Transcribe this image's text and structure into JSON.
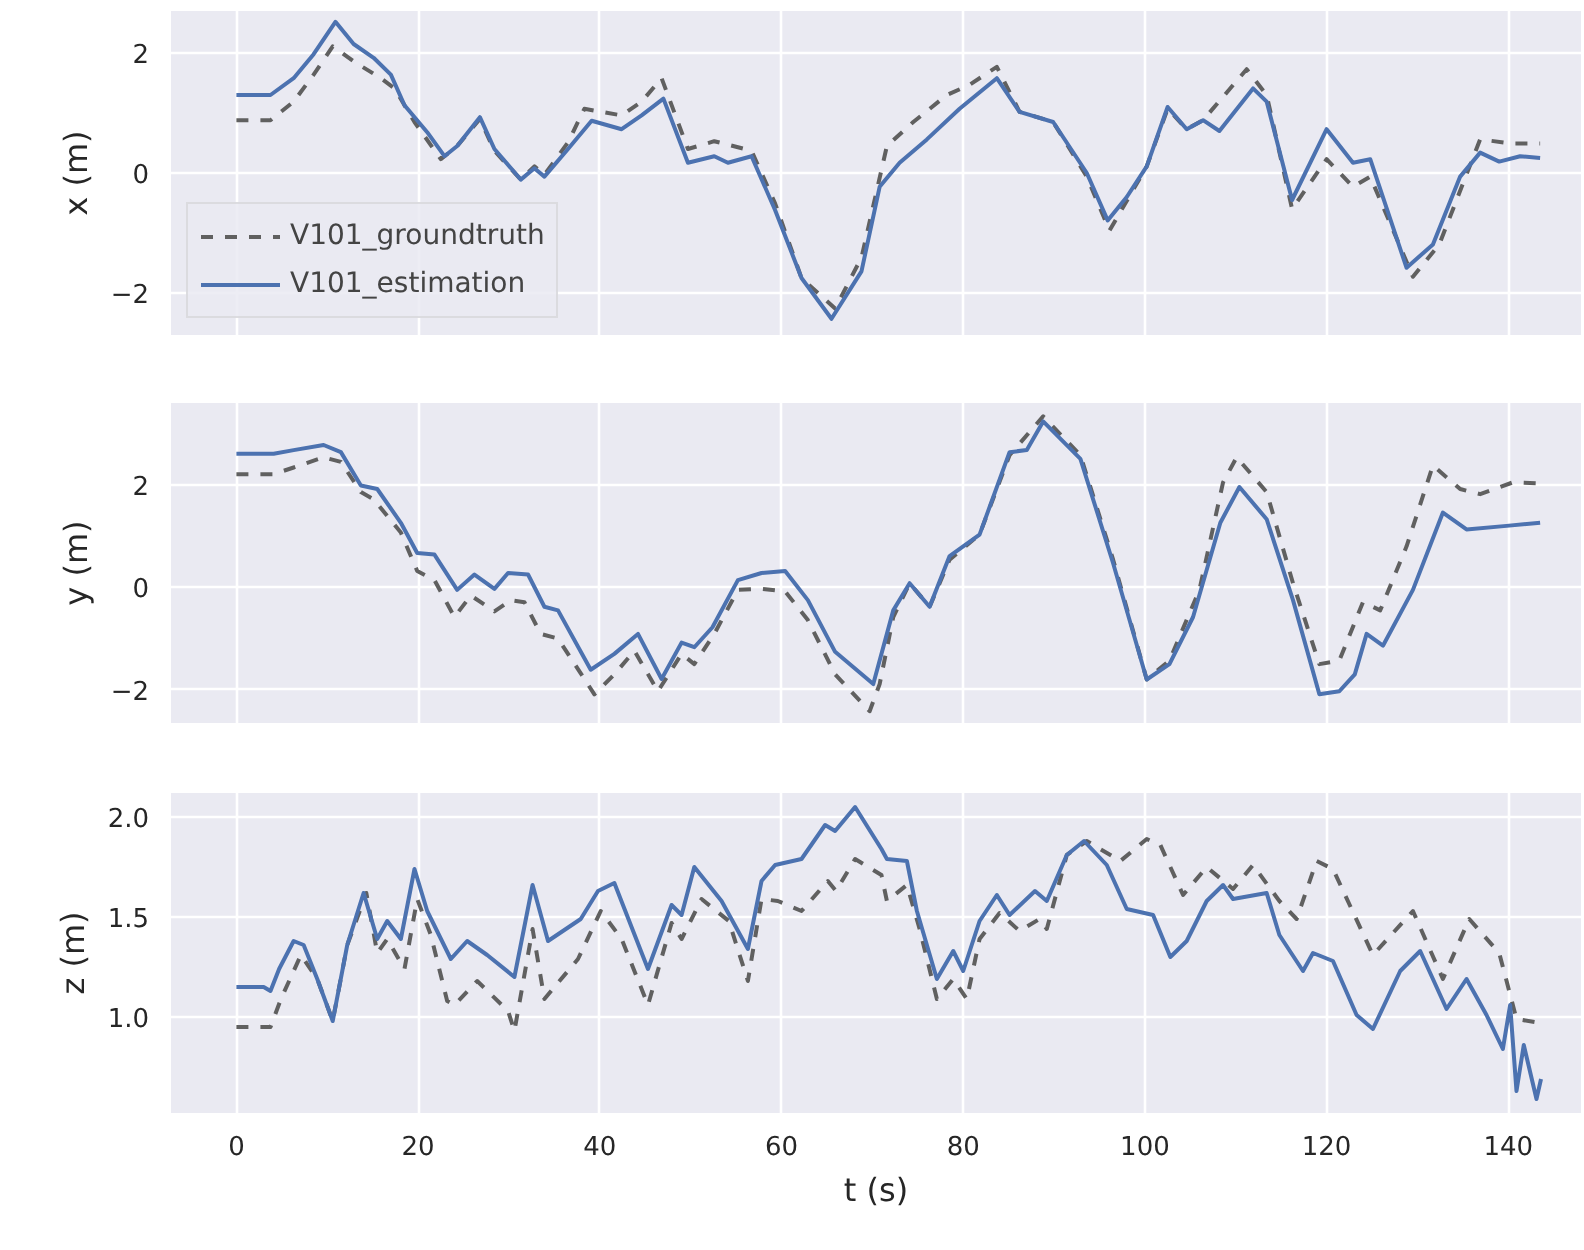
{
  "chart_data": [
    {
      "type": "line",
      "ylabel": "x (m)",
      "xlim": [
        -7.2,
        148
      ],
      "xticks": [
        0,
        20,
        40,
        60,
        80,
        100,
        120,
        140
      ],
      "ylim": [
        -2.7,
        2.7
      ],
      "yticks": [
        -2,
        0,
        2
      ],
      "grid": true,
      "legend": "bottom left",
      "tick_labels": "y",
      "series": [
        {
          "name": "V101_groundtruth",
          "color": "#606060",
          "line_style": "dashed",
          "x": [
            0,
            3.75,
            6.3,
            8.5,
            10.6,
            12.9,
            15.9,
            17.4,
            19.6,
            22.5,
            24.3,
            26.8,
            28.4,
            31.3,
            32.8,
            33.9,
            36.5,
            38.3,
            42.4,
            44.6,
            46.8,
            49.7,
            52.6,
            56.7,
            59.3,
            62.2,
            65.9,
            68.8,
            71.6,
            74.5,
            78.2,
            80.7,
            83.7,
            86.2,
            89.9,
            93.6,
            96.1,
            100.2,
            102.5,
            104.6,
            106.4,
            111.2,
            113.4,
            116.2,
            120,
            122.9,
            124.8,
            129.5,
            132.4,
            136.9,
            140.5,
            143.5
          ],
          "values": [
            0.88,
            0.88,
            1.19,
            1.64,
            2.11,
            1.86,
            1.58,
            1.41,
            0.85,
            0.23,
            0.45,
            0.9,
            0.37,
            -0.11,
            0.11,
            -0.03,
            0.51,
            1.07,
            0.96,
            1.19,
            1.58,
            0.4,
            0.53,
            0.37,
            -0.51,
            -1.75,
            -2.26,
            -1.41,
            0.45,
            0.85,
            1.3,
            1.47,
            1.77,
            1.02,
            0.85,
            -0.06,
            -0.96,
            0.11,
            1.07,
            0.73,
            0.88,
            1.73,
            1.3,
            -0.6,
            0.23,
            -0.23,
            -0.06,
            -1.73,
            -1.19,
            0.56,
            0.49,
            0.49
          ]
        },
        {
          "name": "V101_estimation",
          "color": "#4c72b0",
          "line_style": "solid",
          "x": [
            0,
            3.75,
            6.3,
            8.5,
            10.9,
            12.9,
            15.1,
            17,
            18.5,
            21,
            22.9,
            24.3,
            26.8,
            28.4,
            31.3,
            32.8,
            33.9,
            36.5,
            39.1,
            42.4,
            44.6,
            47,
            49.7,
            52.6,
            54.1,
            56.7,
            59.3,
            62.2,
            65.5,
            68.8,
            70.8,
            73,
            76,
            79.6,
            83.7,
            86.2,
            89.9,
            93.6,
            95.9,
            98,
            100.2,
            102.5,
            104.6,
            106.4,
            108.2,
            111.9,
            113.4,
            116.2,
            120,
            122.9,
            124.8,
            128.8,
            131.7,
            134.7,
            136.9,
            139,
            141.3,
            143.5
          ],
          "values": [
            1.3,
            1.3,
            1.58,
            1.98,
            2.52,
            2.15,
            1.92,
            1.64,
            1.13,
            0.68,
            0.28,
            0.45,
            0.93,
            0.4,
            -0.11,
            0.08,
            -0.06,
            0.4,
            0.87,
            0.73,
            0.96,
            1.24,
            0.17,
            0.28,
            0.17,
            0.28,
            -0.62,
            -1.75,
            -2.43,
            -1.64,
            -0.23,
            0.17,
            0.56,
            1.07,
            1.58,
            1.02,
            0.85,
            0.0,
            -0.79,
            -0.4,
            0.11,
            1.1,
            0.73,
            0.88,
            0.7,
            1.41,
            1.19,
            -0.45,
            0.73,
            0.17,
            0.23,
            -1.58,
            -1.19,
            -0.06,
            0.34,
            0.19,
            0.28,
            0.25
          ]
        }
      ]
    },
    {
      "type": "line",
      "ylabel": "y (m)",
      "xlim": [
        -7.2,
        148
      ],
      "xticks": [
        0,
        20,
        40,
        60,
        80,
        100,
        120,
        140
      ],
      "ylim": [
        -2.65,
        3.6
      ],
      "yticks": [
        -2,
        0,
        2
      ],
      "grid": true,
      "tick_labels": "y",
      "series": [
        {
          "color": "#606060",
          "line_style": "dashed",
          "x": [
            0,
            4.1,
            6.3,
            9.6,
            11.5,
            13.7,
            15.1,
            18.1,
            19.9,
            21.8,
            24,
            25.8,
            28.4,
            30.2,
            31.7,
            33.5,
            35.4,
            39.4,
            41.6,
            43.8,
            46.4,
            49,
            50.4,
            52.6,
            55.2,
            57.8,
            60.4,
            62.9,
            65.9,
            69.7,
            70.8,
            72.3,
            74.1,
            76.3,
            78.5,
            81.8,
            85.1,
            88.8,
            92.9,
            96.5,
            100.2,
            102.7,
            106,
            108.6,
            110.1,
            113.4,
            116.3,
            119.2,
            121.4,
            124,
            125.9,
            128.8,
            131.7,
            134.7,
            136.9,
            140.5,
            143.5
          ],
          "values": [
            2.21,
            2.21,
            2.34,
            2.54,
            2.45,
            1.86,
            1.72,
            1.07,
            0.32,
            0.14,
            -0.58,
            -0.16,
            -0.47,
            -0.25,
            -0.29,
            -0.91,
            -1.0,
            -2.09,
            -1.7,
            -1.24,
            -2.03,
            -1.3,
            -1.5,
            -0.91,
            -0.05,
            -0.03,
            -0.08,
            -0.64,
            -1.7,
            -2.42,
            -1.89,
            -0.58,
            0.08,
            -0.38,
            0.54,
            1.03,
            2.58,
            3.34,
            2.58,
            0.54,
            -1.8,
            -1.43,
            -0.05,
            2.05,
            2.54,
            1.86,
            0.08,
            -1.5,
            -1.43,
            -0.29,
            -0.45,
            0.8,
            2.38,
            1.92,
            1.82,
            2.05,
            2.03
          ]
        },
        {
          "color": "#4c72b0",
          "line_style": "solid",
          "x": [
            0,
            4.1,
            6.3,
            9.6,
            11.5,
            13.7,
            15.5,
            18.1,
            19.9,
            21.8,
            24.3,
            26.2,
            28.4,
            29.9,
            32.1,
            33.9,
            35.4,
            39,
            41.6,
            44.2,
            46.8,
            49,
            50.4,
            52.4,
            55.2,
            57.8,
            60.4,
            62.9,
            65.9,
            70.1,
            72.3,
            74.1,
            76.3,
            78.5,
            81.8,
            85.1,
            87,
            88.8,
            92.9,
            96.5,
            100.2,
            102.7,
            105.3,
            108.3,
            110.4,
            113.4,
            116.3,
            119.2,
            121.4,
            123.1,
            124.4,
            126.2,
            129.5,
            132.8,
            135.4,
            139.8,
            143.5
          ],
          "values": [
            2.61,
            2.61,
            2.68,
            2.78,
            2.64,
            1.99,
            1.92,
            1.26,
            0.67,
            0.64,
            -0.05,
            0.25,
            -0.03,
            0.28,
            0.25,
            -0.38,
            -0.45,
            -1.61,
            -1.3,
            -0.91,
            -1.79,
            -1.08,
            -1.17,
            -0.78,
            0.14,
            0.28,
            0.32,
            -0.25,
            -1.26,
            -1.89,
            -0.45,
            0.08,
            -0.38,
            0.61,
            1.03,
            2.64,
            2.68,
            3.24,
            2.51,
            0.47,
            -1.8,
            -1.5,
            -0.58,
            1.26,
            1.96,
            1.33,
            -0.25,
            -2.09,
            -2.03,
            -1.7,
            -0.91,
            -1.14,
            -0.05,
            1.46,
            1.13,
            1.2,
            1.26
          ]
        }
      ]
    },
    {
      "type": "line",
      "xlabel": "t (s)",
      "ylabel": "z (m)",
      "xlim": [
        -7.2,
        148
      ],
      "xticks": [
        0,
        20,
        40,
        60,
        80,
        100,
        120,
        140
      ],
      "ylim": [
        0.52,
        2.12
      ],
      "yticks": [
        {
          "value": 1.0,
          "label": "1.0"
        },
        1.5,
        {
          "value": 2.0,
          "label": "2.0"
        }
      ],
      "grid": true,
      "series": [
        {
          "color": "#606060",
          "line_style": "dashed",
          "x": [
            0,
            3.75,
            4.9,
            7.1,
            8.9,
            10.6,
            12.2,
            14.3,
            15.5,
            16.6,
            18.5,
            19.9,
            21.4,
            23.2,
            24,
            26.5,
            29.9,
            30.6,
            32.6,
            33.9,
            37.6,
            40.1,
            42.4,
            45.3,
            47.9,
            49,
            51.2,
            54.2,
            56.3,
            57.8,
            59.6,
            62.2,
            65.1,
            66,
            68.1,
            71,
            71.6,
            73.8,
            75.2,
            77.1,
            78.9,
            80.4,
            81.8,
            84,
            86.2,
            88.4,
            89.2,
            91.4,
            93.6,
            97.3,
            100.2,
            101.7,
            104.2,
            106.8,
            109.7,
            111.9,
            114.8,
            116.7,
            118.9,
            120.7,
            125.1,
            129.5,
            132.8,
            135.7,
            139,
            140.9,
            143.5
          ],
          "values": [
            0.95,
            0.95,
            1.09,
            1.31,
            1.19,
            0.98,
            1.36,
            1.62,
            1.32,
            1.39,
            1.24,
            1.59,
            1.41,
            1.08,
            1.06,
            1.18,
            1.03,
            0.93,
            1.44,
            1.09,
            1.29,
            1.53,
            1.39,
            1.06,
            1.47,
            1.39,
            1.59,
            1.48,
            1.18,
            1.59,
            1.58,
            1.53,
            1.68,
            1.63,
            1.79,
            1.71,
            1.58,
            1.66,
            1.44,
            1.09,
            1.19,
            1.09,
            1.39,
            1.52,
            1.43,
            1.49,
            1.44,
            1.81,
            1.88,
            1.78,
            1.89,
            1.86,
            1.61,
            1.75,
            1.64,
            1.76,
            1.58,
            1.49,
            1.78,
            1.74,
            1.31,
            1.53,
            1.19,
            1.49,
            1.32,
            0.99,
            0.97
          ]
        },
        {
          "color": "#4c72b0",
          "line_style": "solid",
          "x": [
            0,
            3,
            3.75,
            4.7,
            6.3,
            7.4,
            8.9,
            10.6,
            12.2,
            14,
            15.5,
            16.6,
            18.1,
            19.6,
            21,
            23.6,
            25.4,
            27.6,
            30.6,
            32.6,
            34.3,
            37.9,
            39.8,
            41.6,
            45.3,
            47.9,
            49,
            50.4,
            53.4,
            56.3,
            57.8,
            59.3,
            62.2,
            64.8,
            65.9,
            68.1,
            71,
            71.6,
            73.8,
            74.9,
            77.1,
            78.9,
            80,
            81.8,
            83.7,
            85.1,
            87.9,
            89.2,
            91.4,
            93.3,
            95.8,
            98,
            100.9,
            102.8,
            104.6,
            106.8,
            108.6,
            109.7,
            113.4,
            114.8,
            117.4,
            118.5,
            120.7,
            123.3,
            125.1,
            128.1,
            130.3,
            133.2,
            135.4,
            137.6,
            139.4,
            140.2,
            140.9,
            141.7,
            143.1,
            143.6
          ],
          "values": [
            1.15,
            1.15,
            1.13,
            1.24,
            1.38,
            1.36,
            1.19,
            0.98,
            1.36,
            1.62,
            1.39,
            1.48,
            1.39,
            1.74,
            1.53,
            1.29,
            1.38,
            1.31,
            1.2,
            1.66,
            1.38,
            1.49,
            1.63,
            1.67,
            1.24,
            1.56,
            1.51,
            1.75,
            1.58,
            1.34,
            1.68,
            1.76,
            1.79,
            1.96,
            1.93,
            2.05,
            1.84,
            1.79,
            1.78,
            1.53,
            1.19,
            1.33,
            1.23,
            1.48,
            1.61,
            1.51,
            1.63,
            1.58,
            1.81,
            1.88,
            1.76,
            1.54,
            1.51,
            1.3,
            1.38,
            1.58,
            1.66,
            1.59,
            1.62,
            1.41,
            1.23,
            1.32,
            1.28,
            1.01,
            0.94,
            1.23,
            1.33,
            1.04,
            1.19,
            1.01,
            0.84,
            1.06,
            0.63,
            0.86,
            0.59,
            0.69
          ]
        }
      ]
    }
  ]
}
